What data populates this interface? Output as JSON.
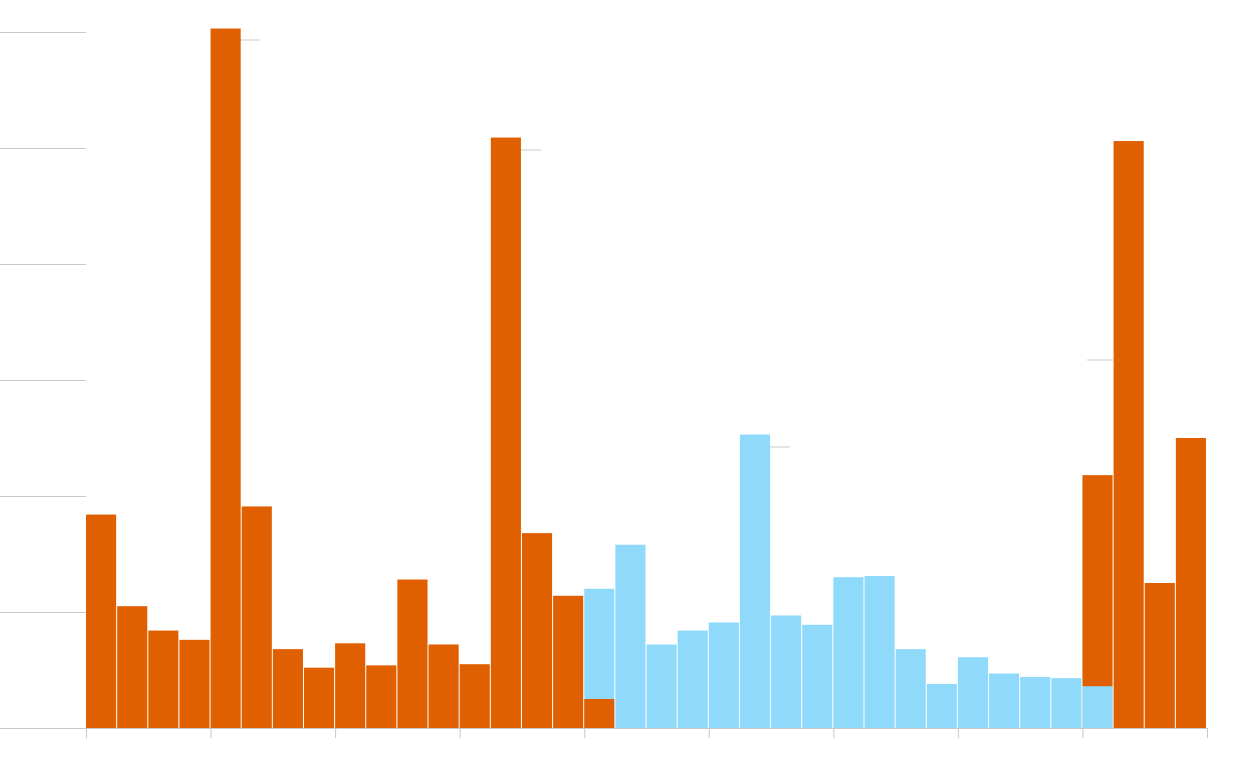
{
  "chart_data": {
    "type": "bar",
    "x": [
      0,
      1,
      2,
      3,
      4,
      5,
      6,
      7,
      8,
      9,
      10,
      11,
      12,
      13,
      14,
      15,
      16,
      17,
      18,
      19,
      20,
      21,
      22,
      23,
      24,
      25,
      26,
      27,
      28,
      29,
      30,
      31,
      32,
      33,
      34,
      35
    ],
    "xlim": [
      0,
      36
    ],
    "xticks": [
      0,
      4,
      8,
      12,
      16,
      20,
      24,
      28,
      32,
      36
    ],
    "ylim": [
      0,
      6.2
    ],
    "yticks": [
      0,
      1,
      2,
      3,
      4,
      5,
      6
    ],
    "grid": true,
    "series": [
      {
        "color": "#e05f00",
        "values": [
          1.84,
          1.05,
          0.84,
          0.76,
          6.03,
          1.91,
          0.68,
          0.52,
          0.73,
          0.54,
          1.28,
          0.72,
          0.55,
          5.09,
          1.68,
          1.14,
          0.25,
          null,
          null,
          null,
          null,
          null,
          null,
          null,
          null,
          null,
          null,
          null,
          null,
          null,
          null,
          null,
          2.18,
          5.06,
          1.25,
          2.5
        ]
      },
      {
        "color": "#8fd9fb",
        "values": [
          null,
          null,
          null,
          null,
          null,
          null,
          null,
          null,
          null,
          null,
          null,
          null,
          null,
          null,
          null,
          null,
          1.2,
          1.58,
          0.72,
          0.84,
          0.91,
          2.53,
          0.97,
          0.89,
          1.3,
          1.31,
          0.68,
          0.38,
          0.61,
          0.47,
          0.44,
          0.43,
          0.36,
          null,
          null,
          null
        ]
      }
    ]
  }
}
